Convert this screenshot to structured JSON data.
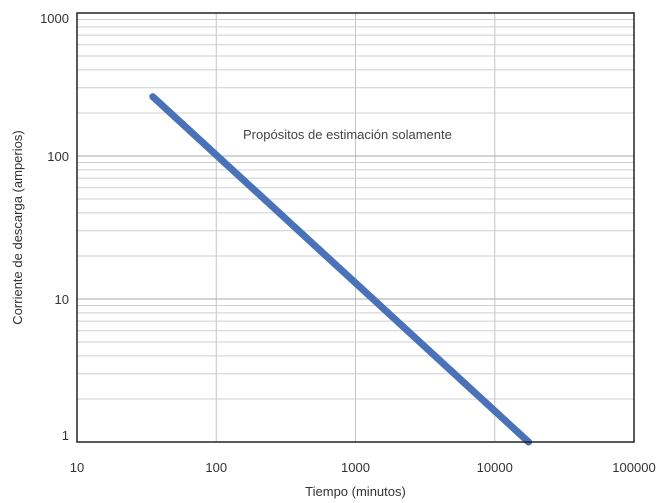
{
  "chart_data": {
    "type": "line",
    "title": "",
    "xlabel": "Tiempo (minutos)",
    "ylabel": "Corriente de descarga (amperios)",
    "x_scale": "log",
    "y_scale": "log",
    "xlim": [
      10,
      100000
    ],
    "ylim": [
      1,
      1000
    ],
    "x_ticks": [
      10,
      100,
      1000,
      10000,
      100000
    ],
    "x_tick_labels": [
      "10",
      "100",
      "1000",
      "10000",
      "100000"
    ],
    "y_ticks": [
      1,
      10,
      100,
      1000
    ],
    "y_tick_labels": [
      "1",
      "10",
      "100",
      "1000"
    ],
    "grid": true,
    "legend": "none",
    "annotation": "Propósitos de estimación solamente",
    "series": [
      {
        "x": [
          35,
          17500
        ],
        "y": [
          260,
          1
        ],
        "color": "#4a72b8"
      }
    ]
  }
}
